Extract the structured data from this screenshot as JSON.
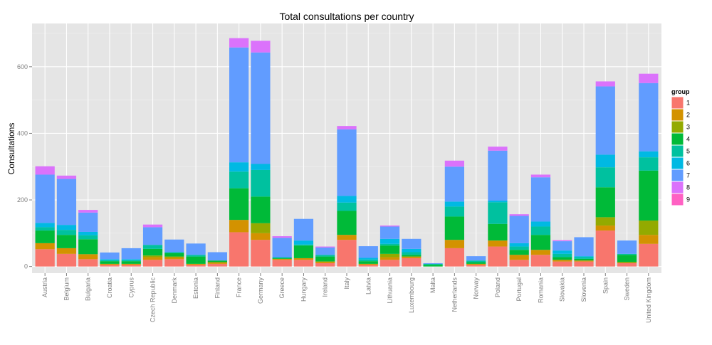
{
  "chart_data": {
    "type": "bar",
    "stacked": true,
    "title": "Total consultations per country",
    "xlabel": "",
    "ylabel": "Consultations",
    "ylim": [
      -20,
      730
    ],
    "yticks": [
      0,
      200,
      400,
      600
    ],
    "grid": true,
    "legend_position": "right",
    "legend_title": "group",
    "categories": [
      "Austria",
      "Belgium",
      "Bulgaria",
      "Croatia",
      "Cyprus",
      "Czech Republic",
      "Denmark",
      "Estonia",
      "Finland",
      "France",
      "Germany",
      "Greece",
      "Hungary",
      "Ireland",
      "Italy",
      "Latvia",
      "Lithuania",
      "Luxembourg",
      "Malta",
      "Netherlands",
      "Norway",
      "Poland",
      "Portugal",
      "Romania",
      "Slovakia",
      "Slovenia",
      "Spain",
      "Sweden",
      "United Kingdom"
    ],
    "series": [
      {
        "name": "1",
        "color": "#F8766D",
        "values": [
          52,
          38,
          22,
          5,
          5,
          20,
          22,
          5,
          8,
          103,
          80,
          20,
          20,
          10,
          80,
          5,
          20,
          25,
          0,
          55,
          5,
          60,
          20,
          35,
          15,
          15,
          108,
          10,
          68
        ]
      },
      {
        "name": "2",
        "color": "#D39200",
        "values": [
          18,
          17,
          15,
          3,
          3,
          8,
          5,
          3,
          5,
          37,
          20,
          3,
          5,
          5,
          15,
          3,
          8,
          5,
          0,
          25,
          3,
          18,
          15,
          15,
          5,
          3,
          15,
          3,
          27
        ]
      },
      {
        "name": "3",
        "color": "#93AA00",
        "values": [
          0,
          0,
          0,
          0,
          0,
          5,
          3,
          0,
          0,
          0,
          30,
          0,
          0,
          0,
          0,
          0,
          10,
          0,
          0,
          0,
          0,
          0,
          0,
          0,
          0,
          0,
          25,
          0,
          43
        ]
      },
      {
        "name": "4",
        "color": "#00BA38",
        "values": [
          38,
          40,
          45,
          8,
          8,
          20,
          10,
          22,
          5,
          95,
          80,
          3,
          38,
          15,
          72,
          8,
          25,
          5,
          5,
          70,
          5,
          50,
          15,
          45,
          8,
          5,
          90,
          22,
          150
        ]
      },
      {
        "name": "5",
        "color": "#00C19F",
        "values": [
          10,
          15,
          12,
          3,
          3,
          12,
          3,
          5,
          0,
          50,
          80,
          0,
          3,
          5,
          25,
          5,
          5,
          8,
          3,
          30,
          5,
          65,
          10,
          25,
          10,
          5,
          60,
          3,
          40
        ]
      },
      {
        "name": "6",
        "color": "#00B9E3",
        "values": [
          13,
          15,
          10,
          3,
          3,
          0,
          0,
          0,
          0,
          28,
          18,
          2,
          12,
          0,
          20,
          5,
          15,
          10,
          0,
          15,
          0,
          5,
          10,
          15,
          10,
          3,
          38,
          0,
          18
        ]
      },
      {
        "name": "7",
        "color": "#619CFF",
        "values": [
          145,
          138,
          58,
          20,
          33,
          53,
          38,
          34,
          25,
          345,
          335,
          58,
          65,
          22,
          200,
          35,
          37,
          30,
          2,
          105,
          13,
          150,
          82,
          133,
          28,
          57,
          205,
          40,
          205
        ]
      },
      {
        "name": "8",
        "color": "#DB72FB",
        "values": [
          25,
          10,
          8,
          0,
          0,
          8,
          0,
          0,
          0,
          28,
          35,
          5,
          0,
          3,
          10,
          0,
          3,
          0,
          0,
          18,
          0,
          12,
          5,
          8,
          3,
          0,
          15,
          0,
          28
        ]
      },
      {
        "name": "9",
        "color": "#FF61C3",
        "values": [
          0,
          0,
          0,
          0,
          0,
          0,
          0,
          0,
          0,
          0,
          0,
          0,
          0,
          0,
          0,
          0,
          0,
          0,
          0,
          0,
          0,
          0,
          0,
          0,
          0,
          0,
          0,
          0,
          0
        ]
      }
    ]
  }
}
